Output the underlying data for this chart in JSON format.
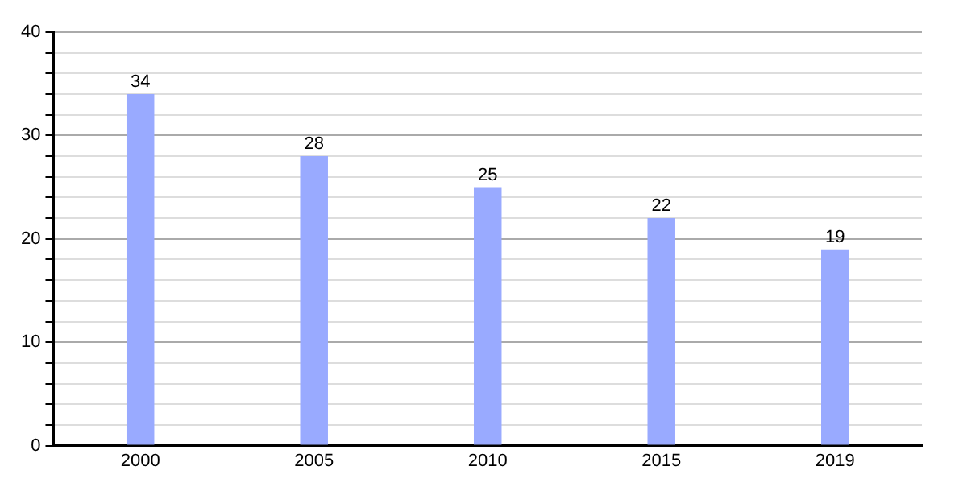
{
  "chart_data": {
    "type": "bar",
    "categories": [
      "2000",
      "2005",
      "2010",
      "2015",
      "2019"
    ],
    "values": [
      34,
      28,
      25,
      22,
      19
    ],
    "color": "#99aaff",
    "ylim": [
      0,
      40
    ],
    "yticks": [
      0,
      {
        "value": 2,
        "label": null
      },
      {
        "value": 4,
        "label": null
      },
      {
        "value": 6,
        "label": null
      },
      {
        "value": 8,
        "label": null
      },
      10,
      {
        "value": 12,
        "label": null
      },
      {
        "value": 14,
        "label": null
      },
      {
        "value": 16,
        "label": null
      },
      {
        "value": 18,
        "label": null
      },
      20,
      {
        "value": 22,
        "label": null
      },
      {
        "value": 24,
        "label": null
      },
      {
        "value": 26,
        "label": null
      },
      {
        "value": 28,
        "label": null
      },
      30,
      {
        "value": 32,
        "label": null
      },
      {
        "value": 34,
        "label": null
      },
      {
        "value": 36,
        "label": null
      },
      {
        "value": 38,
        "label": null
      },
      40
    ],
    "grid": "y",
    "data_labels": true,
    "legend": false
  }
}
